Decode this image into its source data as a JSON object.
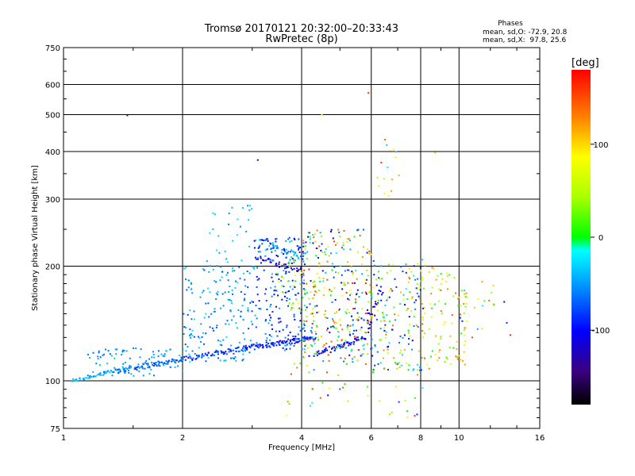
{
  "chart_data": {
    "type": "scatter",
    "title": "Tromsø 20170121 20:32:00–20:33:43",
    "subtitle": "RwPretec (8p)",
    "xlabel": "Frequency [MHz]",
    "ylabel": "Stationary phase Virtual Height [km]",
    "x_scale": "log",
    "y_scale": "log",
    "xlim": [
      1,
      16
    ],
    "ylim": [
      75,
      750
    ],
    "x_ticks": [
      1,
      2,
      4,
      6,
      8,
      10,
      16
    ],
    "x_tick_labels": [
      "1",
      "2",
      "4",
      "6",
      "8",
      "10",
      "16"
    ],
    "y_ticks": [
      75,
      100,
      200,
      300,
      400,
      500,
      600,
      750
    ],
    "y_tick_labels": [
      "75",
      "100",
      "200",
      "300",
      "400",
      "500",
      "600",
      "750"
    ],
    "grid": true,
    "phase_stats": {
      "title": "Phases",
      "line_o": "mean, sd,O: -72.9, 20.8",
      "line_x": "mean, sd,X:  97.8, 25.6"
    },
    "colorbar": {
      "label": "[deg]",
      "range": [
        -180,
        180
      ],
      "ticks": [
        100,
        0,
        -100
      ],
      "tick_labels": [
        "100",
        "0",
        "-100"
      ]
    },
    "series": [
      {
        "traces": [
          {
            "x0": 1.05,
            "x1": 1.35,
            "y0": 100,
            "y1": 106,
            "c": -40,
            "n": 40,
            "j": 0.02
          },
          {
            "x0": 1.35,
            "x1": 2.0,
            "y0": 106,
            "y1": 114,
            "c": -70,
            "n": 80,
            "j": 0.03
          },
          {
            "x0": 2.0,
            "x1": 2.9,
            "y0": 114,
            "y1": 122,
            "c": -80,
            "n": 70,
            "j": 0.03
          },
          {
            "x0": 2.9,
            "x1": 4.3,
            "y0": 122,
            "y1": 130,
            "c": -95,
            "n": 90,
            "j": 0.03
          },
          {
            "x0": 4.3,
            "x1": 5.8,
            "y0": 117,
            "y1": 130,
            "c": -100,
            "n": 60,
            "j": 0.03
          },
          {
            "x0": 5.8,
            "x1": 6.4,
            "y0": 135,
            "y1": 175,
            "c": -110,
            "n": 25,
            "j": 0.04
          },
          {
            "x0": 3.1,
            "x1": 4.0,
            "y0": 210,
            "y1": 195,
            "c": -115,
            "n": 40,
            "j": 0.03
          },
          {
            "x0": 3.3,
            "x1": 3.9,
            "y0": 230,
            "y1": 212,
            "c": -40,
            "n": 30,
            "j": 0.03
          }
        ],
        "clouds": [
          {
            "x0": 1.15,
            "x1": 2.0,
            "y0": 103,
            "y1": 122,
            "c": [
              -70,
              -30
            ],
            "n": 90
          },
          {
            "x0": 2.0,
            "x1": 3.0,
            "y0": 112,
            "y1": 200,
            "c": [
              -80,
              -20
            ],
            "n": 170
          },
          {
            "x0": 2.3,
            "x1": 3.2,
            "y0": 200,
            "y1": 290,
            "c": [
              -60,
              -20
            ],
            "n": 30
          },
          {
            "x0": 3.0,
            "x1": 4.1,
            "y0": 120,
            "y1": 240,
            "c": [
              -120,
              -30
            ],
            "n": 220
          },
          {
            "x0": 3.4,
            "x1": 4.6,
            "y0": 150,
            "y1": 210,
            "c": [
              10,
              90
            ],
            "n": 40
          },
          {
            "x0": 4.0,
            "x1": 6.0,
            "y0": 112,
            "y1": 250,
            "c": [
              -130,
              170
            ],
            "n": 320
          },
          {
            "x0": 6.0,
            "x1": 8.2,
            "y0": 105,
            "y1": 210,
            "c": [
              -120,
              140
            ],
            "n": 170
          },
          {
            "x0": 8.0,
            "x1": 10.5,
            "y0": 110,
            "y1": 200,
            "c": [
              -10,
              150
            ],
            "n": 90
          },
          {
            "x0": 10.0,
            "x1": 13.5,
            "y0": 125,
            "y1": 185,
            "c": [
              -120,
              170
            ],
            "n": 25
          },
          {
            "x0": 3.6,
            "x1": 8.5,
            "y0": 80,
            "y1": 112,
            "c": [
              -100,
              160
            ],
            "n": 45
          },
          {
            "x0": 6.1,
            "x1": 7.1,
            "y0": 300,
            "y1": 440,
            "c": [
              -40,
              170
            ],
            "n": 14
          }
        ],
        "points": [
          {
            "x": 1.45,
            "y": 498,
            "c": -150
          },
          {
            "x": 3.1,
            "y": 380,
            "c": -110
          },
          {
            "x": 4.5,
            "y": 500,
            "c": 90
          },
          {
            "x": 5.9,
            "y": 570,
            "c": 160
          },
          {
            "x": 6.5,
            "y": 430,
            "c": 140
          },
          {
            "x": 6.7,
            "y": 400,
            "c": 150
          },
          {
            "x": 8.7,
            "y": 397,
            "c": 40
          }
        ]
      }
    ]
  }
}
